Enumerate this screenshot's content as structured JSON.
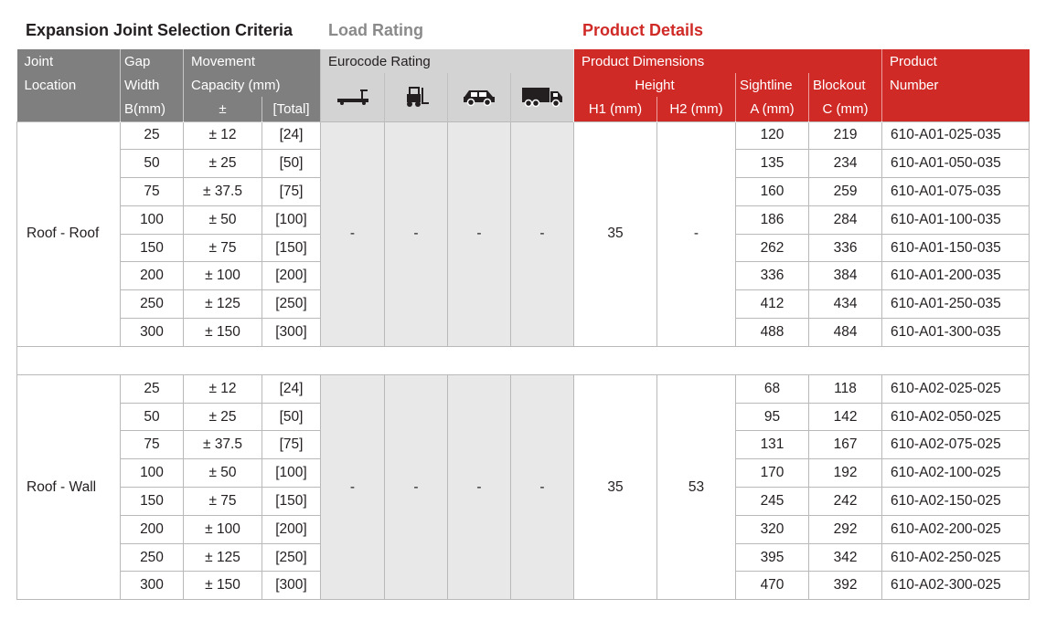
{
  "section_titles": {
    "selection": "Expansion Joint Selection Criteria",
    "load": "Load Rating",
    "product": "Product Details"
  },
  "header": {
    "joint_location": [
      "Joint",
      "Location"
    ],
    "gap_width": [
      "Gap",
      "Width",
      "B(mm)"
    ],
    "movement": [
      "Movement",
      "Capacity (mm)"
    ],
    "movement_pm": "±",
    "movement_total": "[Total]",
    "eurocode": "Eurocode Rating",
    "vehicle_icons": [
      "trailer-icon",
      "forklift-icon",
      "car-icon",
      "truck-icon"
    ],
    "product_dimensions": "Product Dimensions",
    "height": "Height",
    "h1": "H1 (mm)",
    "h2": "H2 (mm)",
    "sightline": [
      "Sightline",
      "A (mm)"
    ],
    "blockout": [
      "Blockout",
      "C (mm)"
    ],
    "product_number": [
      "Product",
      "Number"
    ]
  },
  "groups": [
    {
      "location": "Roof - Roof",
      "rating": [
        "-",
        "-",
        "-",
        "-"
      ],
      "h1": "35",
      "h2": "-",
      "rows": [
        {
          "gap": "25",
          "pm": "± 12",
          "total": "[24]",
          "a": "120",
          "c": "219",
          "pn": "610-A01-025-035"
        },
        {
          "gap": "50",
          "pm": "± 25",
          "total": "[50]",
          "a": "135",
          "c": "234",
          "pn": "610-A01-050-035"
        },
        {
          "gap": "75",
          "pm": "± 37.5",
          "total": "[75]",
          "a": "160",
          "c": "259",
          "pn": "610-A01-075-035"
        },
        {
          "gap": "100",
          "pm": "± 50",
          "total": "[100]",
          "a": "186",
          "c": "284",
          "pn": "610-A01-100-035"
        },
        {
          "gap": "150",
          "pm": "± 75",
          "total": "[150]",
          "a": "262",
          "c": "336",
          "pn": "610-A01-150-035"
        },
        {
          "gap": "200",
          "pm": "± 100",
          "total": "[200]",
          "a": "336",
          "c": "384",
          "pn": "610-A01-200-035"
        },
        {
          "gap": "250",
          "pm": "± 125",
          "total": "[250]",
          "a": "412",
          "c": "434",
          "pn": "610-A01-250-035"
        },
        {
          "gap": "300",
          "pm": "± 150",
          "total": "[300]",
          "a": "488",
          "c": "484",
          "pn": "610-A01-300-035"
        }
      ]
    },
    {
      "location": "Roof - Wall",
      "rating": [
        "-",
        "-",
        "-",
        "-"
      ],
      "h1": "35",
      "h2": "53",
      "rows": [
        {
          "gap": "25",
          "pm": "± 12",
          "total": "[24]",
          "a": "68",
          "c": "118",
          "pn": "610-A02-025-025"
        },
        {
          "gap": "50",
          "pm": "± 25",
          "total": "[50]",
          "a": "95",
          "c": "142",
          "pn": "610-A02-050-025"
        },
        {
          "gap": "75",
          "pm": "± 37.5",
          "total": "[75]",
          "a": "131",
          "c": "167",
          "pn": "610-A02-075-025"
        },
        {
          "gap": "100",
          "pm": "± 50",
          "total": "[100]",
          "a": "170",
          "c": "192",
          "pn": "610-A02-100-025"
        },
        {
          "gap": "150",
          "pm": "± 75",
          "total": "[150]",
          "a": "245",
          "c": "242",
          "pn": "610-A02-150-025"
        },
        {
          "gap": "200",
          "pm": "± 100",
          "total": "[200]",
          "a": "320",
          "c": "292",
          "pn": "610-A02-200-025"
        },
        {
          "gap": "250",
          "pm": "± 125",
          "total": "[250]",
          "a": "395",
          "c": "342",
          "pn": "610-A02-250-025"
        },
        {
          "gap": "300",
          "pm": "± 150",
          "total": "[300]",
          "a": "470",
          "c": "392",
          "pn": "610-A02-300-025"
        }
      ]
    }
  ],
  "colors": {
    "header_grey": "#7f7f80",
    "header_light": "#d3d3d3",
    "accent_red": "#d02a27",
    "rating_fill": "#e8e8e8"
  }
}
